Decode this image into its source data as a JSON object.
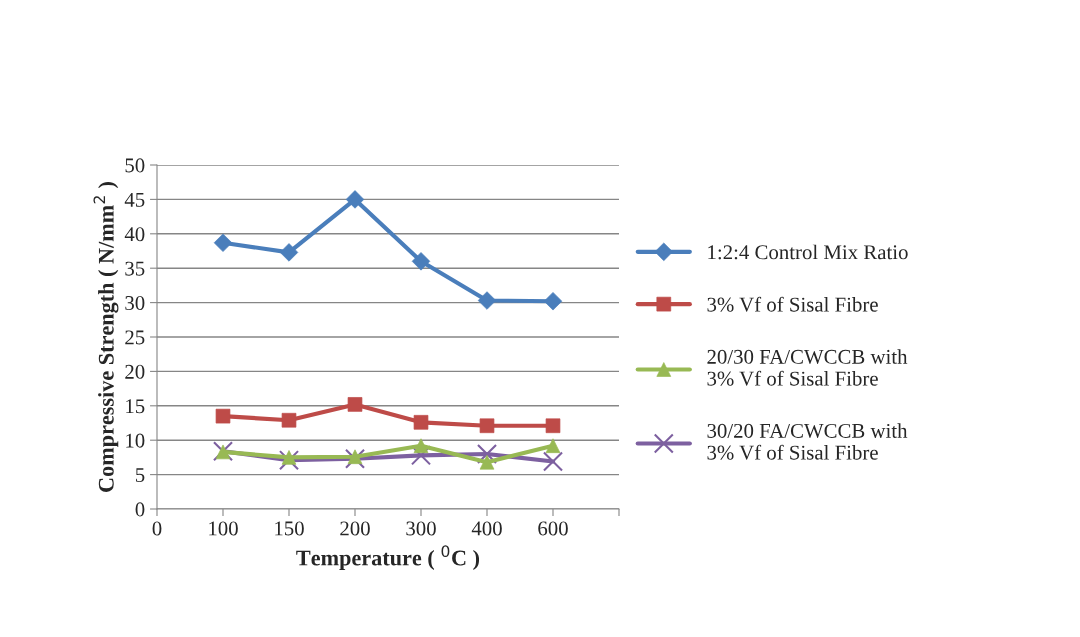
{
  "chart_data": {
    "type": "line",
    "xlabel": "Temperature ( $^{0}$C )",
    "ylabel": "Compressive Strength ( N/mm$^{2}$ )",
    "categories": [
      "0",
      "100",
      "150",
      "200",
      "300",
      "400",
      "600",
      null
    ],
    "series": [
      {
        "name": "1:2:4 Control Mix Ratio",
        "color": "#4a7ebb",
        "marker": "diamond",
        "values": [
          null,
          38.7,
          37.3,
          45,
          36,
          30.3,
          30.2,
          null
        ]
      },
      {
        "name": "3% Vf of Sisal Fibre",
        "color": "#be4b48",
        "marker": "square",
        "values": [
          null,
          13.5,
          12.9,
          15.2,
          12.6,
          12.1,
          12.1,
          null
        ]
      },
      {
        "name": "20/30 FA/CWCCB with\n3% Vf of Sisal Fibre",
        "color": "#98b954",
        "marker": "triangle",
        "values": [
          null,
          8.3,
          7.5,
          7.6,
          9.2,
          6.8,
          9.2,
          null
        ]
      },
      {
        "name": "30/20 FA/CWCCB with\n3% Vf of Sisal Fibre",
        "color": "#7d60a0",
        "marker": "cross",
        "values": [
          null,
          8.4,
          7.1,
          7.3,
          7.8,
          8.0,
          6.9,
          null
        ]
      }
    ],
    "ylim": [
      0,
      50
    ],
    "yticks": [
      0,
      5,
      10,
      15,
      20,
      25,
      30,
      35,
      40,
      45,
      50
    ],
    "grid": "y",
    "legend": "right"
  }
}
